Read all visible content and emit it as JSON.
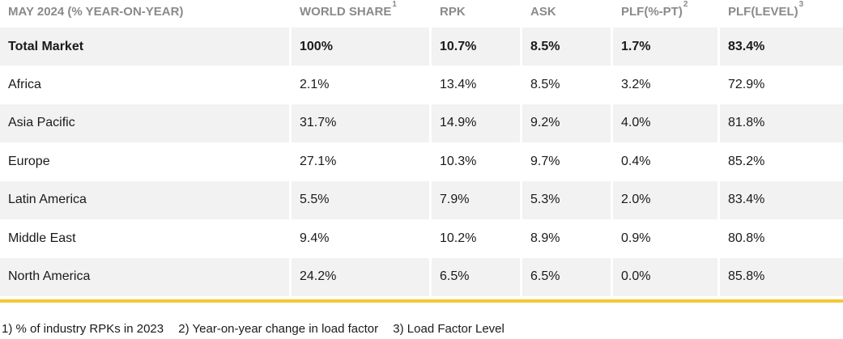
{
  "chart_data": {
    "type": "table",
    "columns": [
      {
        "label": "MAY 2024 (% YEAR-ON-YEAR)",
        "sup": ""
      },
      {
        "label": "WORLD SHARE",
        "sup": "1"
      },
      {
        "label": "RPK",
        "sup": ""
      },
      {
        "label": "ASK",
        "sup": ""
      },
      {
        "label": "PLF(%-PT)",
        "sup": "2"
      },
      {
        "label": "PLF(LEVEL)",
        "sup": "3"
      }
    ],
    "rows": [
      [
        "Total Market",
        "100%",
        "10.7%",
        "8.5%",
        "1.7%",
        "83.4%"
      ],
      [
        "Africa",
        "2.1%",
        "13.4%",
        "8.5%",
        "3.2%",
        "72.9%"
      ],
      [
        "Asia Pacific",
        "31.7%",
        "14.9%",
        "9.2%",
        "4.0%",
        "81.8%"
      ],
      [
        "Europe",
        "27.1%",
        "10.3%",
        "9.7%",
        "0.4%",
        "85.2%"
      ],
      [
        "Latin America",
        "5.5%",
        "7.9%",
        "5.3%",
        "2.0%",
        "83.4%"
      ],
      [
        "Middle East",
        "9.4%",
        "10.2%",
        "8.9%",
        "0.9%",
        "80.8%"
      ],
      [
        "North America",
        "24.2%",
        "6.5%",
        "6.5%",
        "0.0%",
        "85.8%"
      ]
    ],
    "footnotes": [
      "1) % of industry RPKs in 2023",
      "2) Year-on-year change in load factor",
      "3) Load Factor Level"
    ]
  },
  "colors": {
    "accent_rule": "#f2c933",
    "header_text": "#8a8a8a",
    "stripe": "#f2f2f2"
  }
}
